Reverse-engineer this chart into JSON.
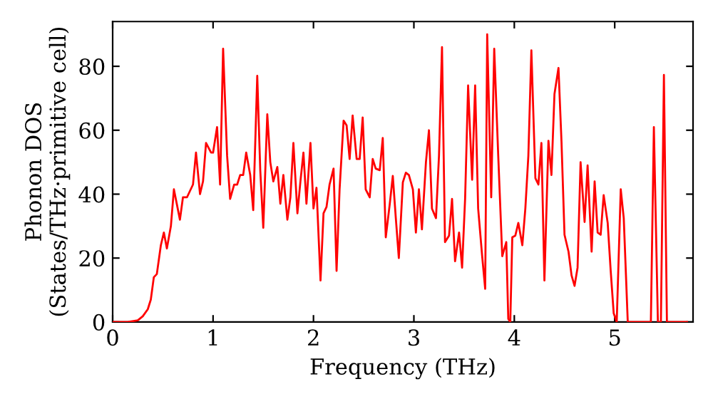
{
  "chart_data": {
    "type": "line",
    "xlabel": "Frequency (THz)",
    "ylabel": "Phonon DOS\n(States/THz·primitive cell)",
    "xlim": [
      0,
      5.78
    ],
    "ylim": [
      0,
      94
    ],
    "xticks": [
      0,
      1,
      2,
      3,
      4,
      5
    ],
    "yticks": [
      0,
      20,
      40,
      60,
      80
    ],
    "grid": false,
    "marker": "none",
    "line_style": "solid",
    "series": [
      {
        "color": "#ff0000",
        "x": [
          0,
          0.15,
          0.25,
          0.3,
          0.35,
          0.38,
          0.41,
          0.44,
          0.48,
          0.51,
          0.54,
          0.58,
          0.61,
          0.67,
          0.7,
          0.74,
          0.8,
          0.83,
          0.87,
          0.9,
          0.93,
          0.98,
          1.0,
          1.04,
          1.07,
          1.1,
          1.14,
          1.17,
          1.21,
          1.24,
          1.27,
          1.3,
          1.33,
          1.37,
          1.4,
          1.44,
          1.47,
          1.5,
          1.54,
          1.57,
          1.6,
          1.64,
          1.67,
          1.7,
          1.74,
          1.77,
          1.8,
          1.84,
          1.87,
          1.9,
          1.93,
          1.97,
          2.0,
          2.03,
          2.07,
          2.1,
          2.13,
          2.16,
          2.2,
          2.23,
          2.26,
          2.3,
          2.33,
          2.36,
          2.39,
          2.43,
          2.46,
          2.49,
          2.52,
          2.56,
          2.59,
          2.62,
          2.66,
          2.69,
          2.72,
          2.76,
          2.79,
          2.82,
          2.85,
          2.89,
          2.92,
          2.95,
          2.99,
          3.02,
          3.05,
          3.08,
          3.12,
          3.15,
          3.18,
          3.22,
          3.25,
          3.28,
          3.31,
          3.35,
          3.38,
          3.41,
          3.45,
          3.48,
          3.51,
          3.54,
          3.58,
          3.61,
          3.64,
          3.68,
          3.71,
          3.73,
          3.77,
          3.8,
          3.84,
          3.88,
          3.92,
          3.94,
          3.96,
          3.98,
          4.01,
          4.04,
          4.08,
          4.11,
          4.14,
          4.17,
          4.21,
          4.24,
          4.27,
          4.3,
          4.34,
          4.37,
          4.4,
          4.44,
          4.47,
          4.5,
          4.54,
          4.57,
          4.6,
          4.63,
          4.66,
          4.7,
          4.73,
          4.77,
          4.8,
          4.83,
          4.86,
          4.89,
          4.93,
          4.96,
          4.99,
          5.02,
          5.06,
          5.09,
          5.13,
          5.36,
          5.39,
          5.43,
          5.46,
          5.49,
          5.52,
          5.72
        ],
        "values": [
          0,
          0,
          0.5,
          1.8,
          4,
          7,
          14,
          15,
          24,
          28,
          23,
          30,
          41.5,
          32,
          39,
          39,
          43,
          53,
          40,
          44,
          56,
          53,
          53,
          61,
          43,
          85.5,
          52,
          38.5,
          43,
          43,
          46,
          46,
          53,
          46,
          35,
          77,
          47.5,
          29.5,
          65,
          50,
          44,
          48.5,
          37,
          46,
          32,
          39,
          56,
          34,
          44,
          53,
          37,
          56,
          35.5,
          42,
          13,
          34,
          36,
          43,
          48,
          16,
          41.5,
          63,
          61.5,
          51,
          64.6,
          51,
          51,
          64,
          41.5,
          39,
          51,
          48,
          47.5,
          57.6,
          26.5,
          37,
          45.7,
          32.5,
          20,
          43.7,
          46.7,
          46,
          41.5,
          28,
          41.5,
          29,
          50,
          60,
          35.5,
          32.5,
          52,
          86,
          25,
          27,
          38.5,
          19,
          28,
          17,
          38.5,
          74,
          44.5,
          74,
          35.5,
          20.6,
          10.4,
          90,
          39,
          85.5,
          52,
          20.6,
          25,
          1,
          0,
          26.5,
          27,
          31,
          24,
          35.5,
          52,
          85,
          45,
          43,
          56,
          13,
          56.7,
          46,
          71.3,
          79.5,
          56.4,
          27.3,
          22,
          14.6,
          11.3,
          17,
          50,
          31.3,
          49,
          22,
          44,
          28,
          27.3,
          39.7,
          31,
          16,
          2.7,
          0,
          41.5,
          32.5,
          0,
          0,
          61,
          0,
          0,
          77.3,
          0,
          0
        ]
      }
    ]
  }
}
